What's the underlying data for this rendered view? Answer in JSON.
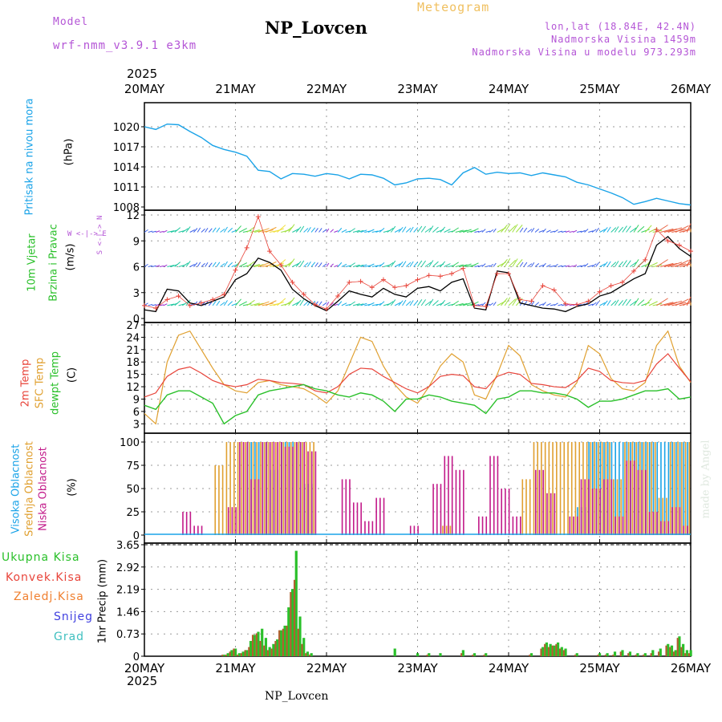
{
  "header": {
    "model_label": "Model",
    "model_name": "wrf-nmm_v3.9.1 e3km",
    "station": "NP_Lovcen",
    "meteogram": "Meteogram",
    "lonlat": "lon,lat (18.84E, 42.4N)",
    "altitude": "Nadmorska Visina 1459m",
    "model_altitude": "Nadmorska Visina u modelu 973.293m",
    "year_top": "2025",
    "year_bottom": "2025",
    "footer_station": "NP_Lovcen",
    "watermark": "made by Angel"
  },
  "x_dates": [
    "20MAY",
    "21MAY",
    "22MAY",
    "23MAY",
    "24MAY",
    "25MAY",
    "26MAY"
  ],
  "panel_labels": {
    "pressure": {
      "name": "Pritisak na nivou mora",
      "unit": "(hPa)"
    },
    "wind": {
      "name1": "10m Vjetar",
      "name2": "Brzina i Pravac",
      "unit": "(m/s)",
      "compass": "W <-|-> E",
      "compass_v": "S <-|-> N"
    },
    "temp": {
      "name1": "2m Temp",
      "name2": "SFC Temp",
      "name3": "dewpt Temp",
      "unit": "(C)"
    },
    "cloud": {
      "name1": "Visoka Oblacnost",
      "name2": "Srednja Oblacnost",
      "name3": "Niska Oblacnost",
      "unit": "(%)"
    },
    "precip": {
      "unit": "1hr Precip (mm)",
      "legend": [
        "Ukupna Kisa",
        "Konvek.Kisa",
        "Zaledj.Kisa",
        "Snijeg",
        "Grad"
      ]
    }
  },
  "colors": {
    "pressure": "#1aa3e8",
    "t2m": "#e8443a",
    "tsfc": "#e0a030",
    "dewpt": "#2ac02a",
    "high": "#1aa3e8",
    "mid": "#e0a030",
    "low": "#c21a8a",
    "total": "#2ac02a",
    "conv": "#e8443a",
    "frz": "#f08030",
    "snow": "#4040e0",
    "hail": "#40c0c0",
    "wind_speed": "#000000",
    "gust": "#e8443a"
  },
  "chart_data": [
    {
      "type": "line",
      "title": "Pritisak na nivou mora",
      "ylabel": "(hPa)",
      "ylim": [
        1008,
        1023
      ],
      "yticks": [
        1008,
        1011,
        1014,
        1017,
        1020
      ],
      "ytick_labels": [
        "1008",
        "1011",
        "1014",
        "1017",
        "1020"
      ],
      "x_hours": [
        0,
        3,
        6,
        9,
        12,
        15,
        18,
        21,
        24,
        27,
        30,
        33,
        36,
        39,
        42,
        45,
        48,
        51,
        54,
        57,
        60,
        63,
        66,
        69,
        72,
        75,
        78,
        81,
        84,
        87,
        90,
        93,
        96,
        99,
        102,
        105,
        108,
        111,
        114,
        117,
        120,
        123,
        126,
        129,
        132,
        135,
        138,
        141,
        144
      ],
      "series": [
        {
          "name": "SLP",
          "values": [
            1020.0,
            1019.6,
            1020.4,
            1020.3,
            1019.3,
            1018.4,
            1017.2,
            1016.6,
            1016.2,
            1015.6,
            1013.5,
            1013.3,
            1012.2,
            1013.0,
            1012.9,
            1012.6,
            1013.0,
            1012.8,
            1012.2,
            1012.9,
            1012.8,
            1012.3,
            1011.3,
            1011.6,
            1012.2,
            1012.3,
            1012.1,
            1011.3,
            1013.1,
            1013.9,
            1012.9,
            1013.2,
            1013.0,
            1013.1,
            1012.7,
            1013.1,
            1012.8,
            1012.5,
            1011.7,
            1011.3,
            1010.7,
            1010.1,
            1009.4,
            1008.4,
            1008.8,
            1009.3,
            1008.9,
            1008.5,
            1008.3
          ]
        }
      ]
    },
    {
      "type": "line",
      "title": "10m Vjetar Brzina i Pravac",
      "ylabel": "(m/s)",
      "ylim": [
        0,
        12
      ],
      "yticks": [
        0,
        3,
        6,
        9,
        12
      ],
      "ytick_labels": [
        "0",
        "3",
        "6",
        "9",
        "12"
      ],
      "x_hours": [
        0,
        3,
        6,
        9,
        12,
        15,
        18,
        21,
        24,
        27,
        30,
        33,
        36,
        39,
        42,
        45,
        48,
        51,
        54,
        57,
        60,
        63,
        66,
        69,
        72,
        75,
        78,
        81,
        84,
        87,
        90,
        93,
        96,
        99,
        102,
        105,
        108,
        111,
        114,
        117,
        120,
        123,
        126,
        129,
        132,
        135,
        138,
        141,
        144
      ],
      "series": [
        {
          "name": "wind_speed",
          "values": [
            1.0,
            0.8,
            3.4,
            3.2,
            1.8,
            1.5,
            2.0,
            2.5,
            4.5,
            5.2,
            7.0,
            6.5,
            5.6,
            3.4,
            2.3,
            1.5,
            0.9,
            2.0,
            3.2,
            2.8,
            2.5,
            3.5,
            2.8,
            2.5,
            3.5,
            3.7,
            3.2,
            4.2,
            4.6,
            1.2,
            1.0,
            5.5,
            5.3,
            1.8,
            1.5,
            1.2,
            1.1,
            0.8,
            1.4,
            1.7,
            2.6,
            3.0,
            3.8,
            4.6,
            5.2,
            8.5,
            9.5,
            8.1,
            7.2
          ]
        },
        {
          "name": "gust",
          "values": [
            1.5,
            1.2,
            2.2,
            2.6,
            1.5,
            1.8,
            2.2,
            2.8,
            5.6,
            8.2,
            11.8,
            7.8,
            6.2,
            4.2,
            2.8,
            1.6,
            1.1,
            2.6,
            4.2,
            4.3,
            3.6,
            4.5,
            3.6,
            3.8,
            4.5,
            5.0,
            4.9,
            5.2,
            5.8,
            1.5,
            1.4,
            5.2,
            5.2,
            2.2,
            2.0,
            3.8,
            3.3,
            1.7,
            1.6,
            2.0,
            3.1,
            3.8,
            4.2,
            5.5,
            6.8,
            10.3,
            9.0,
            8.5,
            7.8
          ]
        }
      ]
    },
    {
      "type": "line",
      "title": "2m Temp / SFC Temp / dewpt Temp",
      "ylabel": "(C)",
      "ylim": [
        1.5,
        27
      ],
      "yticks": [
        3,
        6,
        9,
        12,
        15,
        18,
        21,
        24,
        27
      ],
      "ytick_labels": [
        "3",
        "6",
        "9",
        "12",
        "15",
        "18",
        "21",
        "24",
        "27"
      ],
      "x_hours": [
        0,
        3,
        6,
        9,
        12,
        15,
        18,
        21,
        24,
        27,
        30,
        33,
        36,
        39,
        42,
        45,
        48,
        51,
        54,
        57,
        60,
        63,
        66,
        69,
        72,
        75,
        78,
        81,
        84,
        87,
        90,
        93,
        96,
        99,
        102,
        105,
        108,
        111,
        114,
        117,
        120,
        123,
        126,
        129,
        132,
        135,
        138,
        141,
        144
      ],
      "series": [
        {
          "name": "2m Temp",
          "values": [
            9.5,
            10.5,
            14.5,
            16.2,
            16.8,
            15.3,
            13.5,
            12.5,
            12.0,
            12.5,
            13.8,
            13.5,
            13.0,
            12.8,
            12.5,
            11.0,
            10.5,
            12.0,
            15.0,
            16.5,
            16.3,
            14.5,
            13.0,
            11.5,
            10.5,
            12.0,
            14.5,
            15.0,
            14.7,
            12.0,
            11.5,
            14.5,
            15.5,
            15.0,
            12.8,
            12.5,
            12.0,
            11.8,
            13.5,
            16.5,
            15.7,
            13.5,
            13.0,
            12.8,
            13.5,
            17.5,
            20.0,
            16.5,
            13.2
          ]
        },
        {
          "name": "SFC Temp",
          "values": [
            5.5,
            3.0,
            18.0,
            24.5,
            25.5,
            21.0,
            16.5,
            12.5,
            11.0,
            10.5,
            13.0,
            13.5,
            12.5,
            12.0,
            11.5,
            10.0,
            8.0,
            11.0,
            17.5,
            24.0,
            23.0,
            17.0,
            12.5,
            9.5,
            8.0,
            12.0,
            17.0,
            20.0,
            18.0,
            10.0,
            9.0,
            15.0,
            22.0,
            19.5,
            12.5,
            11.0,
            10.0,
            9.5,
            13.0,
            22.0,
            20.0,
            14.0,
            11.5,
            11.0,
            13.0,
            22.0,
            25.5,
            17.0,
            13.0
          ]
        },
        {
          "name": "dewpt Temp",
          "values": [
            7.5,
            6.5,
            10.0,
            11.0,
            11.0,
            9.5,
            8.0,
            3.0,
            5.0,
            6.0,
            10.0,
            11.0,
            11.5,
            12.0,
            12.5,
            11.5,
            11.0,
            10.0,
            9.5,
            10.5,
            10.0,
            8.5,
            6.0,
            9.0,
            9.0,
            10.0,
            9.5,
            8.5,
            8.0,
            7.5,
            5.5,
            9.0,
            9.5,
            11.0,
            11.0,
            10.5,
            10.5,
            10.0,
            9.0,
            7.0,
            8.5,
            8.5,
            9.0,
            10.0,
            11.0,
            11.0,
            11.5,
            9.0,
            9.5
          ]
        }
      ]
    },
    {
      "type": "bar",
      "title": "Visoka / Srednja / Niska Oblacnost",
      "ylabel": "(%)",
      "ylim": [
        0,
        100
      ],
      "yticks": [
        0,
        25,
        50,
        75,
        100
      ],
      "ytick_labels": [
        "0",
        "25",
        "50",
        "75",
        "100"
      ],
      "x_hours": [
        0,
        3,
        6,
        9,
        12,
        15,
        18,
        21,
        24,
        27,
        30,
        33,
        36,
        39,
        42,
        45,
        48,
        51,
        54,
        57,
        60,
        63,
        66,
        69,
        72,
        75,
        78,
        81,
        84,
        87,
        90,
        93,
        96,
        99,
        102,
        105,
        108,
        111,
        114,
        117,
        120,
        123,
        126,
        129,
        132,
        135,
        138,
        141,
        144
      ],
      "series": [
        {
          "name": "Visoka",
          "values": [
            0,
            0,
            0,
            0,
            0,
            0,
            0,
            0,
            0,
            100,
            100,
            70,
            100,
            100,
            55,
            0,
            0,
            0,
            0,
            0,
            0,
            0,
            0,
            0,
            0,
            0,
            0,
            0,
            0,
            0,
            0,
            0,
            0,
            0,
            0,
            0,
            0,
            0,
            30,
            100,
            100,
            100,
            100,
            100,
            100,
            100,
            100,
            100,
            100
          ]
        },
        {
          "name": "Srednja",
          "values": [
            0,
            0,
            0,
            0,
            0,
            0,
            75,
            100,
            100,
            100,
            100,
            100,
            100,
            100,
            100,
            0,
            0,
            0,
            0,
            0,
            0,
            0,
            0,
            0,
            0,
            0,
            10,
            0,
            0,
            0,
            0,
            0,
            0,
            60,
            100,
            100,
            100,
            100,
            100,
            100,
            100,
            60,
            100,
            100,
            100,
            40,
            100,
            100,
            100
          ]
        },
        {
          "name": "Niska",
          "values": [
            0,
            0,
            0,
            25,
            10,
            0,
            0,
            30,
            100,
            60,
            100,
            100,
            95,
            100,
            90,
            0,
            0,
            60,
            35,
            15,
            40,
            0,
            0,
            10,
            0,
            55,
            85,
            70,
            0,
            20,
            85,
            50,
            20,
            0,
            70,
            45,
            0,
            20,
            60,
            50,
            60,
            20,
            80,
            70,
            25,
            15,
            30,
            10,
            0
          ]
        }
      ]
    },
    {
      "type": "bar",
      "title": "1hr Precip",
      "ylabel": "1hr Precip (mm)",
      "ylim": [
        0,
        3.65
      ],
      "yticks": [
        0,
        0.73,
        1.46,
        2.19,
        2.92,
        3.65
      ],
      "ytick_labels": [
        "0",
        "0.73",
        "1.46",
        "2.19",
        "2.92",
        "3.65"
      ],
      "x_hours": [
        21,
        22,
        23,
        24,
        25,
        26,
        27,
        28,
        29,
        30,
        31,
        32,
        33,
        34,
        35,
        36,
        37,
        38,
        39,
        40,
        41,
        42,
        43,
        44,
        66,
        72,
        75,
        78,
        84,
        87,
        90,
        102,
        105,
        106,
        107,
        108,
        109,
        110,
        111,
        114,
        120,
        122,
        124,
        126,
        128,
        130,
        132,
        134,
        136,
        138,
        139,
        140,
        141,
        142,
        143,
        144
      ],
      "series": [
        {
          "name": "Ukupna Kisa",
          "values": [
            0.05,
            0.1,
            0.2,
            0.25,
            0.1,
            0.15,
            0.2,
            0.5,
            0.7,
            0.8,
            0.9,
            0.6,
            0.3,
            0.4,
            0.55,
            0.85,
            1.0,
            1.6,
            2.2,
            3.45,
            1.3,
            0.6,
            0.15,
            0.1,
            0.25,
            0.1,
            0.1,
            0.1,
            0.2,
            0.1,
            0.1,
            0.1,
            0.3,
            0.45,
            0.4,
            0.35,
            0.45,
            0.3,
            0.25,
            0.1,
            0.1,
            0.1,
            0.15,
            0.2,
            0.15,
            0.1,
            0.1,
            0.2,
            0.25,
            0.4,
            0.35,
            0.2,
            0.65,
            0.4,
            0.2,
            0.2
          ]
        },
        {
          "name": "Konvek.Kisa",
          "values": [
            0.05,
            0.05,
            0.15,
            0.25,
            0.05,
            0.1,
            0.2,
            0.3,
            0.7,
            0.75,
            0.5,
            0.35,
            0.2,
            0.25,
            0.5,
            0.85,
            0.9,
            1.0,
            2.1,
            2.5,
            0.9,
            0.4,
            0.1,
            0.05,
            0.0,
            0.0,
            0.05,
            0.0,
            0.1,
            0.05,
            0.05,
            0.05,
            0.25,
            0.4,
            0.3,
            0.35,
            0.4,
            0.25,
            0.2,
            0.05,
            0.05,
            0.05,
            0.05,
            0.15,
            0.1,
            0.05,
            0.05,
            0.1,
            0.15,
            0.35,
            0.3,
            0.15,
            0.6,
            0.3,
            0.1,
            0.1
          ]
        }
      ]
    }
  ]
}
